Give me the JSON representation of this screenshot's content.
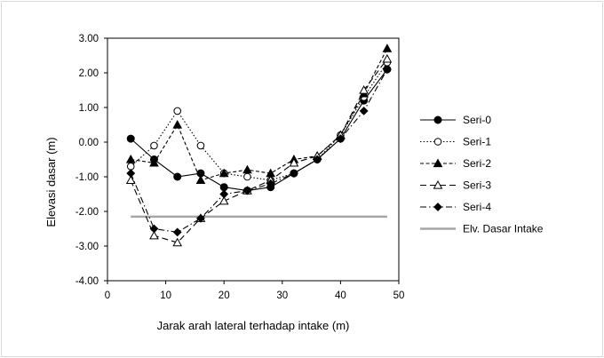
{
  "chart_data": {
    "type": "line",
    "xlabel": "Jarak arah lateral terhadap intake (m)",
    "ylabel": "Elevasi dasar (m)",
    "xlim": [
      0,
      50
    ],
    "ylim": [
      -4,
      3
    ],
    "x_ticks": [
      "0",
      "10",
      "20",
      "30",
      "40",
      "50"
    ],
    "y_ticks": [
      "3.00",
      "2.00",
      "1.00",
      "0.00",
      "-1.00",
      "-2.00",
      "-3.00",
      "-4.00"
    ],
    "x_tick_values": [
      0,
      10,
      20,
      30,
      40,
      50
    ],
    "y_tick_values": [
      3,
      2,
      1,
      0,
      -1,
      -2,
      -3,
      -4
    ],
    "grid": "horizontal-none",
    "legend_position": "right",
    "series": [
      {
        "name": "Seri-0",
        "style": "solid",
        "marker": "circle-filled",
        "color": "#000000",
        "x": [
          4,
          8,
          12,
          16,
          20,
          24,
          28,
          32,
          36,
          40,
          44,
          48
        ],
        "values": [
          0.1,
          -0.5,
          -1.0,
          -0.9,
          -1.3,
          -1.4,
          -1.3,
          -0.9,
          -0.5,
          0.1,
          1.2,
          2.1
        ]
      },
      {
        "name": "Seri-1",
        "style": "dotted",
        "marker": "circle-open",
        "color": "#000000",
        "x": [
          4,
          8,
          12,
          16,
          20,
          24,
          28,
          32,
          36,
          40,
          44,
          48
        ],
        "values": [
          -0.7,
          -0.1,
          0.9,
          -0.1,
          -0.9,
          -1.0,
          -1.1,
          -0.9,
          -0.5,
          0.2,
          1.3,
          2.3
        ]
      },
      {
        "name": "Seri-2",
        "style": "dashed",
        "marker": "triangle-filled",
        "color": "#000000",
        "x": [
          4,
          8,
          12,
          16,
          20,
          24,
          28,
          32,
          36,
          40,
          44,
          48
        ],
        "values": [
          -0.5,
          -0.6,
          0.5,
          -1.1,
          -0.9,
          -0.8,
          -0.9,
          -0.5,
          -0.4,
          0.2,
          1.4,
          2.7
        ]
      },
      {
        "name": "Seri-3",
        "style": "longdash",
        "marker": "triangle-open",
        "color": "#000000",
        "x": [
          4,
          8,
          12,
          16,
          20,
          24,
          28,
          32,
          36,
          40,
          44,
          48
        ],
        "values": [
          -1.1,
          -2.7,
          -2.9,
          -2.2,
          -1.7,
          -1.4,
          -1.1,
          -0.6,
          -0.4,
          0.2,
          1.5,
          2.4
        ]
      },
      {
        "name": "Seri-4",
        "style": "dashdot",
        "marker": "diamond-filled",
        "color": "#000000",
        "x": [
          4,
          8,
          12,
          16,
          20,
          24,
          28,
          32,
          36,
          40,
          44,
          48
        ],
        "values": [
          -0.9,
          -2.5,
          -2.6,
          -2.2,
          -1.5,
          -1.4,
          -1.2,
          -0.9,
          -0.5,
          0.1,
          0.9,
          2.1
        ]
      },
      {
        "name": "Elv. Dasar Intake",
        "style": "solid-thick",
        "marker": "none",
        "color": "#a6a6a6",
        "x": [
          4,
          48
        ],
        "values": [
          -2.15,
          -2.15
        ]
      }
    ]
  }
}
